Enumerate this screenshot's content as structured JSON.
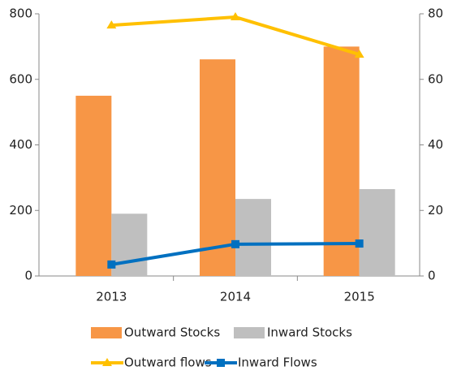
{
  "chart_data": {
    "type": "bar",
    "categories": [
      "2013",
      "2014",
      "2015"
    ],
    "series": [
      {
        "name": "Outward Stocks",
        "type": "bar",
        "color": "#f79646",
        "values": [
          550,
          661,
          700
        ]
      },
      {
        "name": "Inward Stocks",
        "type": "bar",
        "color": "#bfbfbf",
        "values": [
          190,
          235,
          265
        ]
      },
      {
        "name": "Outward flows",
        "type": "line",
        "marker": "triangle",
        "axis": "y2",
        "color": "#ffc000",
        "values": [
          76.5,
          79,
          67.6
        ]
      },
      {
        "name": "Inward Flows",
        "type": "line",
        "marker": "square",
        "axis": "y2",
        "color": "#0070c0",
        "values": [
          3.5,
          9.7,
          9.9
        ]
      }
    ],
    "ylim": [
      0,
      800
    ],
    "yticks": [
      0,
      200,
      400,
      600,
      800
    ],
    "y2lim": [
      0,
      80
    ],
    "y2ticks": [
      0,
      20,
      40,
      60,
      80
    ],
    "legend": "bottom"
  }
}
